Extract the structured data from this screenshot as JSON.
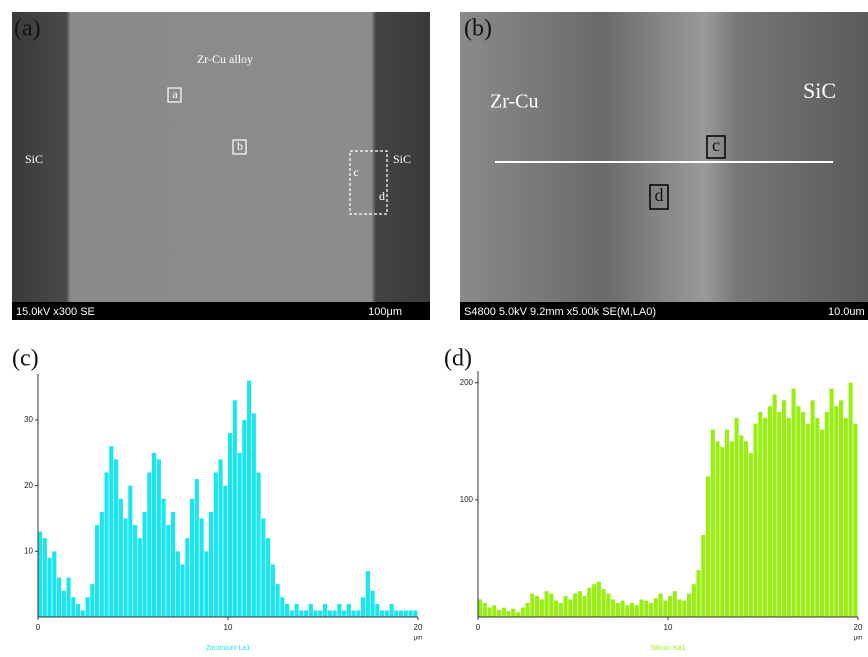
{
  "panels": {
    "a": {
      "label": "(a)",
      "alloy": "Zr-Cu alloy",
      "sic_left": "SiC",
      "sic_right": "SiC",
      "point_a": "a",
      "point_b": "b",
      "point_c": "c",
      "point_d": "d",
      "info": "15.0kV x300 SE",
      "scale": "100μm"
    },
    "b": {
      "label": "(b)",
      "alloy": "Zr-Cu",
      "sic": "SiC",
      "point_c": "c",
      "point_d": "d",
      "info": "S4800 5.0kV 9.2mm x5.00k SE(M,LA0)",
      "scale": "10.0um"
    },
    "c": {
      "label": "(c)"
    },
    "d": {
      "label": "(d)"
    }
  },
  "chart_data": [
    {
      "type": "bar",
      "series_name": "Zirconium La1",
      "color": "#19e6f0",
      "x_unit": "μm",
      "xlim": [
        0,
        20
      ],
      "xticks": [
        0,
        10,
        20
      ],
      "ylim": [
        0,
        37
      ],
      "yticks": [
        10,
        20,
        30
      ],
      "x": [
        0,
        0.25,
        0.5,
        0.75,
        1,
        1.25,
        1.5,
        1.75,
        2,
        2.25,
        2.5,
        2.75,
        3,
        3.25,
        3.5,
        3.75,
        4,
        4.25,
        4.5,
        4.75,
        5,
        5.25,
        5.5,
        5.75,
        6,
        6.25,
        6.5,
        6.75,
        7,
        7.25,
        7.5,
        7.75,
        8,
        8.25,
        8.5,
        8.75,
        9,
        9.25,
        9.5,
        9.75,
        10,
        10.25,
        10.5,
        10.75,
        11,
        11.25,
        11.5,
        11.75,
        12,
        12.25,
        12.5,
        12.75,
        13,
        13.25,
        13.5,
        13.75,
        14,
        14.25,
        14.5,
        14.75,
        15,
        15.25,
        15.5,
        15.75,
        16,
        16.25,
        16.5,
        16.75,
        17,
        17.25,
        17.5,
        17.75,
        18,
        18.25,
        18.5,
        18.75,
        19,
        19.25,
        19.5,
        19.75
      ],
      "values": [
        13,
        12,
        9,
        10,
        6,
        4,
        6,
        3,
        2,
        1,
        3,
        5,
        14,
        16,
        22,
        26,
        24,
        18,
        15,
        20,
        14,
        12,
        16,
        22,
        25,
        24,
        18,
        14,
        16,
        10,
        8,
        12,
        18,
        21,
        15,
        10,
        16,
        22,
        24,
        20,
        28,
        33,
        25,
        30,
        36,
        31,
        22,
        15,
        12,
        8,
        5,
        3,
        2,
        1,
        2,
        1,
        1,
        2,
        1,
        1,
        2,
        1,
        1,
        2,
        1,
        2,
        1,
        1,
        3,
        7,
        4,
        2,
        1,
        1,
        2,
        1,
        1,
        1,
        1,
        1
      ]
    },
    {
      "type": "bar",
      "series_name": "Silicon Ka1",
      "color": "#99ee12",
      "x_unit": "μm",
      "xlim": [
        0,
        20
      ],
      "xticks": [
        0,
        10,
        20
      ],
      "ylim": [
        0,
        210
      ],
      "yticks": [
        100,
        200
      ],
      "x": [
        0,
        0.25,
        0.5,
        0.75,
        1,
        1.25,
        1.5,
        1.75,
        2,
        2.25,
        2.5,
        2.75,
        3,
        3.25,
        3.5,
        3.75,
        4,
        4.25,
        4.5,
        4.75,
        5,
        5.25,
        5.5,
        5.75,
        6,
        6.25,
        6.5,
        6.75,
        7,
        7.25,
        7.5,
        7.75,
        8,
        8.25,
        8.5,
        8.75,
        9,
        9.25,
        9.5,
        9.75,
        10,
        10.25,
        10.5,
        10.75,
        11,
        11.25,
        11.5,
        11.75,
        12,
        12.25,
        12.5,
        12.75,
        13,
        13.25,
        13.5,
        13.75,
        14,
        14.25,
        14.5,
        14.75,
        15,
        15.25,
        15.5,
        15.75,
        16,
        16.25,
        16.5,
        16.75,
        17,
        17.25,
        17.5,
        17.75,
        18,
        18.25,
        18.5,
        18.75,
        19,
        19.25,
        19.5,
        19.75
      ],
      "values": [
        15,
        12,
        8,
        10,
        6,
        8,
        5,
        7,
        4,
        8,
        12,
        20,
        18,
        15,
        22,
        20,
        14,
        12,
        18,
        15,
        20,
        22,
        18,
        25,
        28,
        30,
        24,
        20,
        15,
        12,
        14,
        10,
        12,
        10,
        15,
        14,
        12,
        16,
        20,
        14,
        18,
        22,
        15,
        14,
        20,
        28,
        40,
        70,
        120,
        160,
        150,
        145,
        160,
        150,
        170,
        155,
        150,
        140,
        165,
        175,
        170,
        180,
        190,
        175,
        185,
        170,
        195,
        180,
        175,
        165,
        185,
        170,
        160,
        175,
        195,
        180,
        185,
        170,
        200,
        165
      ]
    }
  ]
}
